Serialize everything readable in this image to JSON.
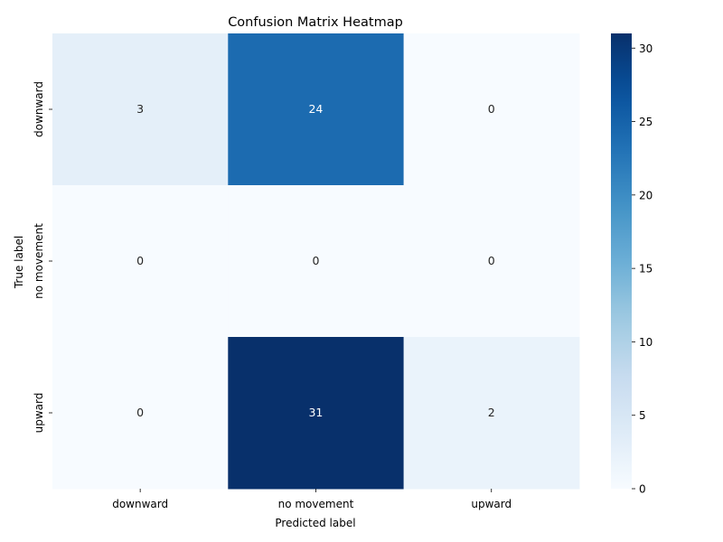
{
  "chart_data": {
    "type": "heatmap",
    "title": "Confusion Matrix Heatmap",
    "xlabel": "Predicted label",
    "ylabel": "True label",
    "x_categories": [
      "downward",
      "no movement",
      "upward"
    ],
    "y_categories": [
      "downward",
      "no movement",
      "upward"
    ],
    "values": [
      [
        3,
        24,
        0
      ],
      [
        0,
        0,
        0
      ],
      [
        0,
        31,
        2
      ]
    ],
    "colorbar": {
      "min": 0,
      "max": 31,
      "ticks": [
        0,
        5,
        10,
        15,
        20,
        25,
        30
      ]
    },
    "colormap": "Blues"
  }
}
